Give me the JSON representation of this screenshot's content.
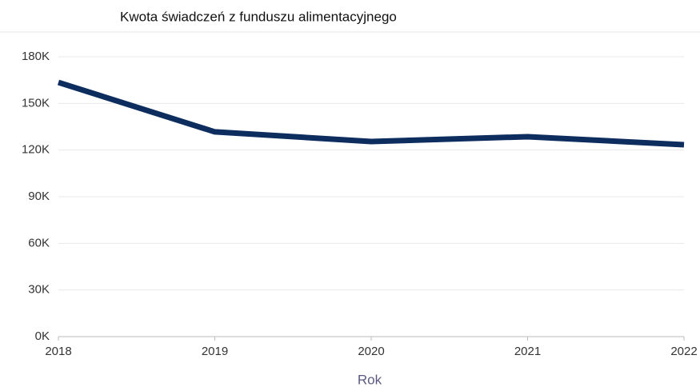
{
  "chart_data": {
    "type": "line",
    "title": "Kwota świadczeń z funduszu alimentacyjnego",
    "x_label": "Rok",
    "x": [
      2018,
      2019,
      2020,
      2021,
      2022
    ],
    "series": [
      {
        "name": "Kwota",
        "color": "#0d2d5e",
        "values": [
          163500,
          131700,
          125500,
          128600,
          123400
        ]
      }
    ],
    "xlim": [
      2018,
      2022
    ],
    "xticks": [
      2018,
      2019,
      2020,
      2021,
      2022
    ],
    "ylim": [
      0,
      180000
    ],
    "yticks": [
      {
        "value": 0,
        "label": "0K"
      },
      {
        "value": 30000,
        "label": "30K"
      },
      {
        "value": 60000,
        "label": "60K"
      },
      {
        "value": 90000,
        "label": "90K"
      },
      {
        "value": 120000,
        "label": "120K"
      },
      {
        "value": 150000,
        "label": "150K"
      },
      {
        "value": 180000,
        "label": "180K"
      }
    ],
    "grid": true
  }
}
